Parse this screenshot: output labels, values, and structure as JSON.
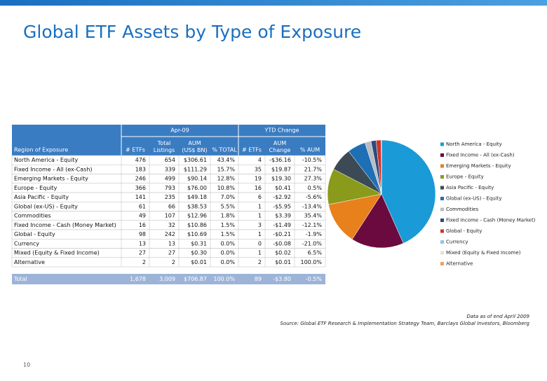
{
  "title": "Global ETF Assets by Type of Exposure",
  "table": {
    "group_headers": [
      "Apr-09",
      "YTD Change"
    ],
    "columns": [
      "Region of Exposure",
      "# ETFs",
      "Total Listings",
      "AUM (US$ BN)",
      "% TOTAL",
      "# ETFs",
      "AUM Change",
      "% AUM"
    ],
    "rows": [
      [
        "North America - Equity",
        "476",
        "654",
        "$306.61",
        "43.4%",
        "4",
        "-$36.16",
        "-10.5%"
      ],
      [
        "Fixed Income - All (ex-Cash)",
        "183",
        "339",
        "$111.29",
        "15.7%",
        "35",
        "$19.87",
        "21.7%"
      ],
      [
        "Emerging Markets - Equity",
        "246",
        "499",
        "$90.14",
        "12.8%",
        "19",
        "$19.30",
        "27.3%"
      ],
      [
        "Europe - Equity",
        "366",
        "793",
        "$76.00",
        "10.8%",
        "16",
        "$0.41",
        "0.5%"
      ],
      [
        "Asia Pacific - Equity",
        "141",
        "235",
        "$49.18",
        "7.0%",
        "6",
        "-$2.92",
        "-5.6%"
      ],
      [
        "Global (ex-US) - Equity",
        "61",
        "66",
        "$38.53",
        "5.5%",
        "1",
        "-$5.95",
        "-13.4%"
      ],
      [
        "Commodities",
        "49",
        "107",
        "$12.96",
        "1.8%",
        "1",
        "$3.39",
        "35.4%"
      ],
      [
        "Fixed Income - Cash (Money Market)",
        "16",
        "32",
        "$10.86",
        "1.5%",
        "3",
        "-$1.49",
        "-12.1%"
      ],
      [
        "Global - Equity",
        "98",
        "242",
        "$10.69",
        "1.5%",
        "1",
        "-$0.21",
        "-1.9%"
      ],
      [
        "Currency",
        "13",
        "13",
        "$0.31",
        "0.0%",
        "0",
        "-$0.08",
        "-21.0%"
      ],
      [
        "Mixed (Equity & Fixed Income)",
        "27",
        "27",
        "$0.30",
        "0.0%",
        "1",
        "$0.02",
        "6.5%"
      ],
      [
        "Alternative",
        "2",
        "2",
        "$0.01",
        "0.0%",
        "2",
        "$0.01",
        "100.0%"
      ]
    ],
    "total": [
      "Total",
      "1,678",
      "3,009",
      "$706.87",
      "100.0%",
      "89",
      "-$3.80",
      "-0.5%"
    ]
  },
  "chart_data": {
    "type": "pie",
    "categories": [
      "North America - Equity",
      "Fixed Income - All (ex-Cash)",
      "Emerging Markets - Equity",
      "Europe - Equity",
      "Asia Pacific - Equity",
      "Global (ex-US) - Equity",
      "Commodities",
      "Fixed Income - Cash (Money Market)",
      "Global - Equity",
      "Currency",
      "Mixed (Equity & Fixed Income)",
      "Alternative"
    ],
    "values": [
      306.61,
      111.29,
      90.14,
      76.0,
      49.18,
      38.53,
      12.96,
      10.86,
      10.69,
      0.31,
      0.3,
      0.01
    ],
    "colors": [
      "#1a9ad6",
      "#6b0a3e",
      "#e8801c",
      "#8a9a1a",
      "#3b4a55",
      "#1f6fb5",
      "#b8bcc4",
      "#2e4a7a",
      "#d0332e",
      "#8fc6e8",
      "#e8e0d0",
      "#f0a060"
    ]
  },
  "footnote": [
    "Data as of end April 2009",
    "Source: Global ETF Research & Implementation Strategy Team, Barclays Global Investors, Bloomberg"
  ],
  "page_number": "10"
}
